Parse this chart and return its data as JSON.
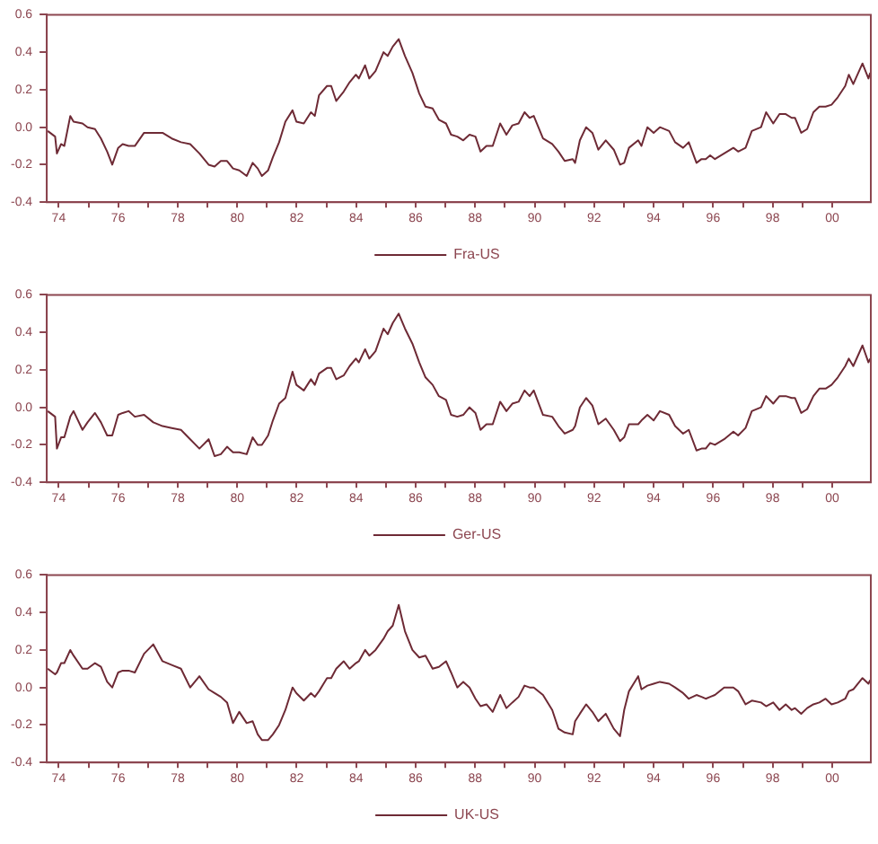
{
  "chart_data": [
    {
      "type": "line",
      "x": [
        1973.63,
        1973.88,
        1973.94,
        1974.08,
        1974.19,
        1974.39,
        1974.5,
        1974.8,
        1974.97,
        1975.22,
        1975.42,
        1975.63,
        1975.8,
        1976.0,
        1976.15,
        1976.35,
        1976.56,
        1976.87,
        1977.18,
        1977.49,
        1977.8,
        1978.11,
        1978.42,
        1978.73,
        1979.04,
        1979.24,
        1979.45,
        1979.66,
        1979.86,
        1980.07,
        1980.32,
        1980.52,
        1980.69,
        1980.83,
        1981.04,
        1981.2,
        1981.41,
        1981.62,
        1981.86,
        1981.99,
        1982.24,
        1982.48,
        1982.61,
        1982.75,
        1983.02,
        1983.16,
        1983.33,
        1983.58,
        1983.78,
        1983.99,
        1984.09,
        1984.3,
        1984.44,
        1984.65,
        1984.92,
        1985.06,
        1985.23,
        1985.43,
        1985.64,
        1985.89,
        1986.12,
        1986.33,
        1986.57,
        1986.78,
        1987.02,
        1987.19,
        1987.4,
        1987.6,
        1987.81,
        1988.01,
        1988.18,
        1988.38,
        1988.59,
        1988.84,
        1989.05,
        1989.25,
        1989.46,
        1989.66,
        1989.83,
        1989.97,
        1990.28,
        1990.59,
        1990.8,
        1991.01,
        1991.28,
        1991.36,
        1991.52,
        1991.73,
        1991.94,
        1992.14,
        1992.39,
        1992.66,
        1992.87,
        1993.01,
        1993.17,
        1993.48,
        1993.59,
        1993.79,
        1994.0,
        1994.21,
        1994.52,
        1994.72,
        1994.99,
        1995.18,
        1995.44,
        1995.61,
        1995.75,
        1995.9,
        1996.06,
        1996.37,
        1996.68,
        1996.84,
        1997.09,
        1997.3,
        1997.61,
        1997.78,
        1998.02,
        1998.23,
        1998.44,
        1998.64,
        1998.75,
        1998.96,
        1999.16,
        1999.37,
        1999.57,
        1999.78,
        1999.98,
        2000.19,
        2000.44,
        2000.56,
        2000.71,
        2001.02,
        2001.22,
        2001.28
      ],
      "series": [
        {
          "name": "Fra-US",
          "color": "#6e2a35",
          "values": [
            -0.02,
            -0.05,
            -0.14,
            -0.09,
            -0.1,
            0.06,
            0.03,
            0.02,
            0.0,
            -0.01,
            -0.06,
            -0.13,
            -0.2,
            -0.11,
            -0.09,
            -0.1,
            -0.1,
            -0.03,
            -0.03,
            -0.03,
            -0.06,
            -0.08,
            -0.09,
            -0.14,
            -0.2,
            -0.21,
            -0.18,
            -0.18,
            -0.22,
            -0.23,
            -0.26,
            -0.19,
            -0.22,
            -0.26,
            -0.23,
            -0.16,
            -0.08,
            0.03,
            0.09,
            0.03,
            0.02,
            0.08,
            0.06,
            0.17,
            0.22,
            0.22,
            0.14,
            0.19,
            0.24,
            0.28,
            0.26,
            0.33,
            0.26,
            0.3,
            0.4,
            0.38,
            0.43,
            0.47,
            0.38,
            0.29,
            0.18,
            0.11,
            0.1,
            0.04,
            0.02,
            -0.04,
            -0.05,
            -0.07,
            -0.04,
            -0.05,
            -0.13,
            -0.1,
            -0.1,
            0.02,
            -0.04,
            0.01,
            0.02,
            0.08,
            0.05,
            0.06,
            -0.06,
            -0.09,
            -0.13,
            -0.18,
            -0.17,
            -0.19,
            -0.07,
            0.0,
            -0.03,
            -0.12,
            -0.07,
            -0.12,
            -0.2,
            -0.19,
            -0.11,
            -0.07,
            -0.1,
            0.0,
            -0.03,
            0.0,
            -0.02,
            -0.08,
            -0.11,
            -0.08,
            -0.19,
            -0.17,
            -0.17,
            -0.15,
            -0.17,
            -0.14,
            -0.11,
            -0.13,
            -0.11,
            -0.02,
            0.0,
            0.08,
            0.02,
            0.07,
            0.07,
            0.05,
            0.05,
            -0.03,
            -0.01,
            0.08,
            0.11,
            0.11,
            0.12,
            0.16,
            0.22,
            0.28,
            0.23,
            0.34,
            0.26,
            0.29
          ]
        }
      ],
      "xlim": [
        1973.6,
        2001.3
      ],
      "xticks": [
        {
          "value": 1974,
          "label": "74"
        },
        {
          "value": 1975,
          "label": null
        },
        {
          "value": 1976,
          "label": "76"
        },
        {
          "value": 1977,
          "label": null
        },
        {
          "value": 1978,
          "label": "78"
        },
        {
          "value": 1979,
          "label": null
        },
        {
          "value": 1980,
          "label": "80"
        },
        {
          "value": 1981,
          "label": null
        },
        {
          "value": 1982,
          "label": "82"
        },
        {
          "value": 1983,
          "label": null
        },
        {
          "value": 1984,
          "label": "84"
        },
        {
          "value": 1985,
          "label": null
        },
        {
          "value": 1986,
          "label": "86"
        },
        {
          "value": 1987,
          "label": null
        },
        {
          "value": 1988,
          "label": "88"
        },
        {
          "value": 1989,
          "label": null
        },
        {
          "value": 1990,
          "label": "90"
        },
        {
          "value": 1991,
          "label": null
        },
        {
          "value": 1992,
          "label": "92"
        },
        {
          "value": 1993,
          "label": null
        },
        {
          "value": 1994,
          "label": "94"
        },
        {
          "value": 1995,
          "label": null
        },
        {
          "value": 1996,
          "label": "96"
        },
        {
          "value": 1997,
          "label": null
        },
        {
          "value": 1998,
          "label": "98"
        },
        {
          "value": 1999,
          "label": null
        },
        {
          "value": 2000,
          "label": "00"
        }
      ],
      "ylim": [
        -0.4,
        0.6
      ],
      "yticks": [
        {
          "value": -0.4,
          "label": "-0.4"
        },
        {
          "value": -0.2,
          "label": "-0.2"
        },
        {
          "value": 0,
          "label": "0.0"
        },
        {
          "value": 0.2,
          "label": "0.2"
        },
        {
          "value": 0.4,
          "label": "0.4"
        },
        {
          "value": 0.6,
          "label": "0.6"
        }
      ],
      "grid": false,
      "legend": "bottom",
      "marker": "none",
      "line_style": "solid"
    },
    {
      "type": "line",
      "x": [
        1973.63,
        1973.88,
        1973.94,
        1974.08,
        1974.19,
        1974.39,
        1974.5,
        1974.8,
        1974.97,
        1975.22,
        1975.42,
        1975.63,
        1975.8,
        1976.0,
        1976.15,
        1976.35,
        1976.56,
        1976.87,
        1977.18,
        1977.49,
        1977.8,
        1978.11,
        1978.42,
        1978.73,
        1979.04,
        1979.24,
        1979.45,
        1979.66,
        1979.86,
        1980.07,
        1980.32,
        1980.52,
        1980.69,
        1980.83,
        1981.04,
        1981.2,
        1981.41,
        1981.62,
        1981.86,
        1981.99,
        1982.24,
        1982.48,
        1982.61,
        1982.75,
        1983.02,
        1983.16,
        1983.33,
        1983.58,
        1983.78,
        1983.99,
        1984.09,
        1984.3,
        1984.44,
        1984.65,
        1984.92,
        1985.06,
        1985.23,
        1985.43,
        1985.64,
        1985.89,
        1986.12,
        1986.33,
        1986.57,
        1986.78,
        1987.02,
        1987.19,
        1987.4,
        1987.6,
        1987.81,
        1988.01,
        1988.18,
        1988.38,
        1988.59,
        1988.84,
        1989.05,
        1989.25,
        1989.46,
        1989.66,
        1989.83,
        1989.97,
        1990.28,
        1990.59,
        1990.8,
        1991.01,
        1991.28,
        1991.36,
        1991.52,
        1991.73,
        1991.94,
        1992.14,
        1992.39,
        1992.66,
        1992.87,
        1993.01,
        1993.17,
        1993.48,
        1993.59,
        1993.79,
        1994.0,
        1994.21,
        1994.52,
        1994.72,
        1994.99,
        1995.18,
        1995.44,
        1995.61,
        1995.75,
        1995.9,
        1996.06,
        1996.37,
        1996.68,
        1996.84,
        1997.09,
        1997.3,
        1997.61,
        1997.78,
        1998.02,
        1998.23,
        1998.44,
        1998.64,
        1998.75,
        1998.96,
        1999.16,
        1999.37,
        1999.57,
        1999.78,
        1999.98,
        2000.19,
        2000.44,
        2000.56,
        2000.71,
        2001.02,
        2001.22,
        2001.28
      ],
      "series": [
        {
          "name": "Ger-US",
          "color": "#6e2a35",
          "values": [
            -0.02,
            -0.05,
            -0.22,
            -0.16,
            -0.16,
            -0.05,
            -0.02,
            -0.12,
            -0.08,
            -0.03,
            -0.08,
            -0.15,
            -0.15,
            -0.04,
            -0.03,
            -0.02,
            -0.05,
            -0.04,
            -0.08,
            -0.1,
            -0.11,
            -0.12,
            -0.17,
            -0.22,
            -0.17,
            -0.26,
            -0.25,
            -0.21,
            -0.24,
            -0.24,
            -0.25,
            -0.16,
            -0.2,
            -0.2,
            -0.15,
            -0.07,
            0.02,
            0.05,
            0.19,
            0.12,
            0.09,
            0.15,
            0.12,
            0.18,
            0.21,
            0.21,
            0.15,
            0.17,
            0.22,
            0.26,
            0.24,
            0.31,
            0.26,
            0.3,
            0.42,
            0.39,
            0.45,
            0.5,
            0.42,
            0.34,
            0.24,
            0.16,
            0.12,
            0.06,
            0.04,
            -0.04,
            -0.05,
            -0.04,
            0.0,
            -0.03,
            -0.12,
            -0.09,
            -0.09,
            0.03,
            -0.02,
            0.02,
            0.03,
            0.09,
            0.06,
            0.09,
            -0.04,
            -0.05,
            -0.1,
            -0.14,
            -0.12,
            -0.1,
            0.0,
            0.05,
            0.01,
            -0.09,
            -0.06,
            -0.12,
            -0.18,
            -0.16,
            -0.09,
            -0.09,
            -0.07,
            -0.04,
            -0.07,
            -0.02,
            -0.04,
            -0.1,
            -0.14,
            -0.12,
            -0.23,
            -0.22,
            -0.22,
            -0.19,
            -0.2,
            -0.17,
            -0.13,
            -0.15,
            -0.11,
            -0.02,
            0.0,
            0.06,
            0.02,
            0.06,
            0.06,
            0.05,
            0.05,
            -0.03,
            -0.01,
            0.06,
            0.1,
            0.1,
            0.12,
            0.16,
            0.22,
            0.26,
            0.22,
            0.33,
            0.24,
            0.26
          ]
        }
      ],
      "xlim": [
        1973.6,
        2001.3
      ],
      "xticks": [
        {
          "value": 1974,
          "label": "74"
        },
        {
          "value": 1975,
          "label": null
        },
        {
          "value": 1976,
          "label": "76"
        },
        {
          "value": 1977,
          "label": null
        },
        {
          "value": 1978,
          "label": "78"
        },
        {
          "value": 1979,
          "label": null
        },
        {
          "value": 1980,
          "label": "80"
        },
        {
          "value": 1981,
          "label": null
        },
        {
          "value": 1982,
          "label": "82"
        },
        {
          "value": 1983,
          "label": null
        },
        {
          "value": 1984,
          "label": "84"
        },
        {
          "value": 1985,
          "label": null
        },
        {
          "value": 1986,
          "label": "86"
        },
        {
          "value": 1987,
          "label": null
        },
        {
          "value": 1988,
          "label": "88"
        },
        {
          "value": 1989,
          "label": null
        },
        {
          "value": 1990,
          "label": "90"
        },
        {
          "value": 1991,
          "label": null
        },
        {
          "value": 1992,
          "label": "92"
        },
        {
          "value": 1993,
          "label": null
        },
        {
          "value": 1994,
          "label": "94"
        },
        {
          "value": 1995,
          "label": null
        },
        {
          "value": 1996,
          "label": "96"
        },
        {
          "value": 1997,
          "label": null
        },
        {
          "value": 1998,
          "label": "98"
        },
        {
          "value": 1999,
          "label": null
        },
        {
          "value": 2000,
          "label": "00"
        }
      ],
      "ylim": [
        -0.4,
        0.6
      ],
      "yticks": [
        {
          "value": -0.4,
          "label": "-0.4"
        },
        {
          "value": -0.2,
          "label": "-0.2"
        },
        {
          "value": 0,
          "label": "0.0"
        },
        {
          "value": 0.2,
          "label": "0.2"
        },
        {
          "value": 0.4,
          "label": "0.4"
        },
        {
          "value": 0.6,
          "label": "0.6"
        }
      ],
      "grid": false,
      "legend": "bottom",
      "marker": "none",
      "line_style": "solid"
    },
    {
      "type": "line",
      "x": [
        1973.63,
        1973.88,
        1973.94,
        1974.08,
        1974.19,
        1974.39,
        1974.5,
        1974.8,
        1974.97,
        1975.22,
        1975.42,
        1975.63,
        1975.8,
        1976.0,
        1976.15,
        1976.35,
        1976.56,
        1976.87,
        1977.18,
        1977.49,
        1977.8,
        1978.11,
        1978.42,
        1978.73,
        1979.04,
        1979.24,
        1979.45,
        1979.66,
        1979.86,
        1980.07,
        1980.32,
        1980.52,
        1980.69,
        1980.83,
        1981.04,
        1981.2,
        1981.41,
        1981.62,
        1981.86,
        1981.99,
        1982.24,
        1982.48,
        1982.61,
        1982.75,
        1983.02,
        1983.16,
        1983.33,
        1983.58,
        1983.78,
        1983.99,
        1984.09,
        1984.3,
        1984.44,
        1984.65,
        1984.92,
        1985.06,
        1985.23,
        1985.43,
        1985.64,
        1985.89,
        1986.12,
        1986.33,
        1986.57,
        1986.78,
        1987.02,
        1987.19,
        1987.4,
        1987.6,
        1987.81,
        1988.01,
        1988.18,
        1988.38,
        1988.59,
        1988.84,
        1989.05,
        1989.25,
        1989.46,
        1989.66,
        1989.83,
        1989.97,
        1990.28,
        1990.59,
        1990.8,
        1991.01,
        1991.28,
        1991.36,
        1991.52,
        1991.73,
        1991.94,
        1992.14,
        1992.39,
        1992.66,
        1992.87,
        1993.01,
        1993.17,
        1993.48,
        1993.59,
        1993.79,
        1994.0,
        1994.21,
        1994.52,
        1994.72,
        1994.99,
        1995.18,
        1995.44,
        1995.61,
        1995.75,
        1995.9,
        1996.06,
        1996.37,
        1996.68,
        1996.84,
        1997.09,
        1997.3,
        1997.61,
        1997.78,
        1998.02,
        1998.23,
        1998.44,
        1998.64,
        1998.75,
        1998.96,
        1999.16,
        1999.37,
        1999.57,
        1999.78,
        1999.98,
        2000.19,
        2000.44,
        2000.56,
        2000.71,
        2001.02,
        2001.22,
        2001.28
      ],
      "series": [
        {
          "name": "UK-US",
          "color": "#6e2a35",
          "values": [
            0.1,
            0.07,
            0.08,
            0.13,
            0.13,
            0.2,
            0.17,
            0.1,
            0.1,
            0.13,
            0.11,
            0.03,
            0.0,
            0.08,
            0.09,
            0.09,
            0.08,
            0.18,
            0.23,
            0.14,
            0.12,
            0.1,
            0.0,
            0.06,
            -0.01,
            -0.03,
            -0.05,
            -0.08,
            -0.19,
            -0.13,
            -0.19,
            -0.18,
            -0.25,
            -0.28,
            -0.28,
            -0.25,
            -0.2,
            -0.12,
            0.0,
            -0.03,
            -0.07,
            -0.03,
            -0.05,
            -0.02,
            0.05,
            0.05,
            0.1,
            0.14,
            0.1,
            0.13,
            0.14,
            0.2,
            0.17,
            0.2,
            0.26,
            0.3,
            0.33,
            0.44,
            0.3,
            0.2,
            0.16,
            0.17,
            0.1,
            0.11,
            0.14,
            0.08,
            0.0,
            0.03,
            0.0,
            -0.06,
            -0.1,
            -0.09,
            -0.13,
            -0.04,
            -0.11,
            -0.08,
            -0.05,
            0.01,
            0.0,
            0.0,
            -0.04,
            -0.12,
            -0.22,
            -0.24,
            -0.25,
            -0.18,
            -0.14,
            -0.09,
            -0.13,
            -0.18,
            -0.14,
            -0.22,
            -0.26,
            -0.12,
            -0.02,
            0.06,
            -0.01,
            0.01,
            0.02,
            0.03,
            0.02,
            0.0,
            -0.03,
            -0.06,
            -0.04,
            -0.05,
            -0.06,
            -0.05,
            -0.04,
            0.0,
            0.0,
            -0.02,
            -0.09,
            -0.07,
            -0.08,
            -0.1,
            -0.08,
            -0.12,
            -0.09,
            -0.12,
            -0.11,
            -0.14,
            -0.11,
            -0.09,
            -0.08,
            -0.06,
            -0.09,
            -0.08,
            -0.06,
            -0.02,
            -0.01,
            0.05,
            0.02,
            0.04
          ]
        }
      ],
      "xlim": [
        1973.6,
        2001.3
      ],
      "xticks": [
        {
          "value": 1974,
          "label": "74"
        },
        {
          "value": 1975,
          "label": null
        },
        {
          "value": 1976,
          "label": "76"
        },
        {
          "value": 1977,
          "label": null
        },
        {
          "value": 1978,
          "label": "78"
        },
        {
          "value": 1979,
          "label": null
        },
        {
          "value": 1980,
          "label": "80"
        },
        {
          "value": 1981,
          "label": null
        },
        {
          "value": 1982,
          "label": "82"
        },
        {
          "value": 1983,
          "label": null
        },
        {
          "value": 1984,
          "label": "84"
        },
        {
          "value": 1985,
          "label": null
        },
        {
          "value": 1986,
          "label": "86"
        },
        {
          "value": 1987,
          "label": null
        },
        {
          "value": 1988,
          "label": "88"
        },
        {
          "value": 1989,
          "label": null
        },
        {
          "value": 1990,
          "label": "90"
        },
        {
          "value": 1991,
          "label": null
        },
        {
          "value": 1992,
          "label": "92"
        },
        {
          "value": 1993,
          "label": null
        },
        {
          "value": 1994,
          "label": "94"
        },
        {
          "value": 1995,
          "label": null
        },
        {
          "value": 1996,
          "label": "96"
        },
        {
          "value": 1997,
          "label": null
        },
        {
          "value": 1998,
          "label": "98"
        },
        {
          "value": 1999,
          "label": null
        },
        {
          "value": 2000,
          "label": "00"
        }
      ],
      "ylim": [
        -0.4,
        0.6
      ],
      "yticks": [
        {
          "value": -0.4,
          "label": "-0.4"
        },
        {
          "value": -0.2,
          "label": "-0.2"
        },
        {
          "value": 0,
          "label": "0.0"
        },
        {
          "value": 0.2,
          "label": "0.2"
        },
        {
          "value": 0.4,
          "label": "0.4"
        },
        {
          "value": 0.6,
          "label": "0.6"
        }
      ],
      "grid": false,
      "legend": "bottom",
      "marker": "none",
      "line_style": "solid"
    }
  ]
}
